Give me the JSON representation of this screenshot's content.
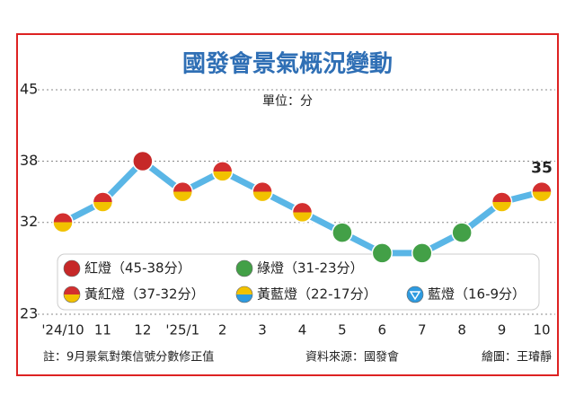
{
  "chart_data": {
    "type": "line",
    "title": "國發會景氣概況變動",
    "subtitle": "單位：分",
    "categories": [
      "'24/10",
      "11",
      "12",
      "'25/1",
      "2",
      "3",
      "4",
      "5",
      "6",
      "7",
      "8",
      "9",
      "10"
    ],
    "series": [
      {
        "name": "景氣對策信號分數",
        "color": "#5ab6e6",
        "values": [
          32,
          34,
          38,
          35,
          37,
          35,
          33,
          31,
          29,
          29,
          31,
          34,
          35
        ],
        "marker_colors": [
          [
            "#d32f2f",
            "#f2c200"
          ],
          [
            "#d32f2f",
            "#f2c200"
          ],
          [
            "#c62828",
            "#c62828"
          ],
          [
            "#d32f2f",
            "#f2c200"
          ],
          [
            "#d32f2f",
            "#f2c200"
          ],
          [
            "#d32f2f",
            "#f2c200"
          ],
          [
            "#d32f2f",
            "#f2c200"
          ],
          [
            "#43a047",
            "#43a047"
          ],
          [
            "#43a047",
            "#43a047"
          ],
          [
            "#43a047",
            "#43a047"
          ],
          [
            "#43a047",
            "#43a047"
          ],
          [
            "#d32f2f",
            "#f2c200"
          ],
          [
            "#d32f2f",
            "#f2c200"
          ]
        ]
      }
    ],
    "ylim": [
      23,
      45
    ],
    "yticks": [
      23,
      32,
      38,
      45
    ],
    "grid": true,
    "legend": [
      {
        "name": "紅燈（45-38分）",
        "colors": [
          "#c62828",
          "#c62828"
        ]
      },
      {
        "name": "綠燈（31-23分）",
        "colors": [
          "#43a047",
          "#43a047"
        ]
      },
      {
        "name": "黃紅燈（37-32分）",
        "colors": [
          "#d32f2f",
          "#f2c200"
        ]
      },
      {
        "name": "黃藍燈（22-17分）",
        "colors": [
          "#f2c200",
          "#2e9be0"
        ]
      },
      {
        "name": "藍燈（16-9分）",
        "colors": [
          "#2e9be0",
          "#2e9be0"
        ]
      }
    ],
    "notes": {
      "left": "註：9月景氣對策信號分數修正值",
      "source": "資料來源：國發會",
      "credit": "繪圖：王璿靜"
    }
  }
}
